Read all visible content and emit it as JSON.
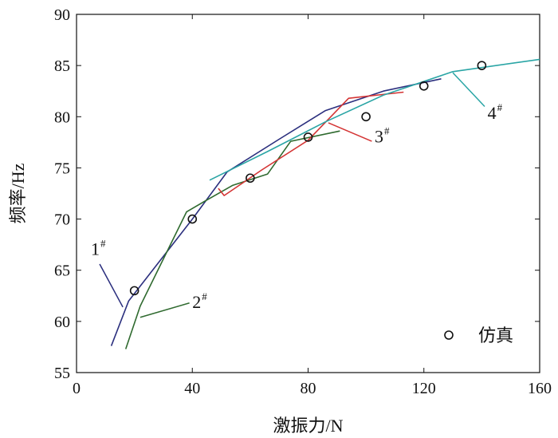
{
  "chart_data": {
    "type": "line",
    "xlabel": "激振力/N",
    "ylabel": "频率/Hz",
    "xlim": [
      0,
      160
    ],
    "ylim": [
      55,
      90
    ],
    "x_ticks": [
      0,
      40,
      80,
      120,
      160
    ],
    "x_tick_labels": [
      "0",
      "40",
      "80",
      "120",
      "160"
    ],
    "y_ticks": [
      55,
      60,
      65,
      70,
      75,
      80,
      85,
      90
    ],
    "y_tick_labels": [
      "55",
      "60",
      "65",
      "70",
      "75",
      "80",
      "85",
      "90"
    ],
    "grid": false,
    "legend_placement": "bottom-right",
    "series": [
      {
        "name": "1",
        "color": "#2b2f7e",
        "x": [
          12,
          18,
          40,
          52,
          70,
          86,
          106,
          126
        ],
        "y": [
          57.6,
          62.0,
          70.0,
          74.6,
          77.8,
          80.6,
          82.5,
          83.7
        ]
      },
      {
        "name": "2",
        "color": "#2f6a2f",
        "x": [
          17,
          22,
          38,
          44,
          54,
          66,
          74,
          91
        ],
        "y": [
          57.3,
          61.5,
          70.7,
          71.7,
          73.3,
          74.4,
          77.6,
          78.6
        ]
      },
      {
        "name": "3",
        "color": "#d43434",
        "x": [
          49,
          51,
          64,
          80,
          94,
          113
        ],
        "y": [
          73.0,
          72.3,
          74.8,
          77.7,
          81.8,
          82.4
        ]
      },
      {
        "name": "4",
        "color": "#2aa5a5",
        "x": [
          46,
          66,
          86,
          106,
          130,
          160
        ],
        "y": [
          73.8,
          76.6,
          79.5,
          82.1,
          84.4,
          85.6
        ]
      },
      {
        "name": "仿真",
        "marker": "open-circle",
        "color": "#111111",
        "x": [
          20,
          40,
          60,
          80,
          100,
          120,
          140
        ],
        "y": [
          63,
          70,
          74,
          78,
          80,
          83,
          85
        ]
      }
    ],
    "annotations": [
      {
        "label": "1",
        "sup": "#",
        "label_at": [
          8,
          66.5
        ],
        "line_from": [
          8,
          65.6
        ],
        "line_to": [
          16,
          61.4
        ]
      },
      {
        "label": "2",
        "sup": "#",
        "label_at": [
          40,
          61.3
        ],
        "line_from": [
          39,
          61.8
        ],
        "line_to": [
          22,
          60.4
        ]
      },
      {
        "label": "3",
        "sup": "#",
        "label_at": [
          103,
          77.5
        ],
        "line_from": [
          102,
          77.6
        ],
        "line_to": [
          87,
          79.4
        ]
      },
      {
        "label": "4",
        "sup": "#",
        "label_at": [
          142,
          79.8
        ],
        "line_from": [
          141,
          81.0
        ],
        "line_to": [
          130,
          84.3
        ]
      }
    ],
    "legend": {
      "marker": "open-circle",
      "label": "仿真"
    }
  }
}
